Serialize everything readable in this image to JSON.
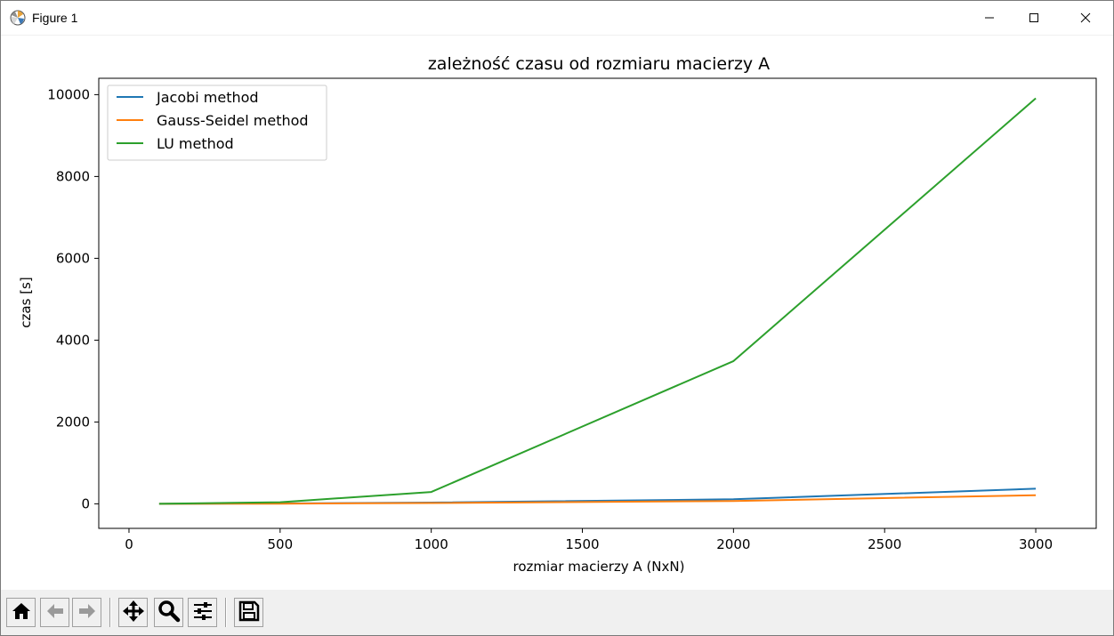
{
  "window": {
    "title": "Figure 1",
    "icons": {
      "app": "matplotlib-icon",
      "minimize": "minimize-icon",
      "maximize": "maximize-icon",
      "close": "close-icon"
    }
  },
  "toolbar": {
    "buttons": [
      {
        "name": "home-button",
        "icon": "home-icon"
      },
      {
        "name": "back-button",
        "icon": "arrow-left-icon"
      },
      {
        "name": "forward-button",
        "icon": "arrow-right-icon"
      },
      {
        "name": "pan-button",
        "icon": "move-icon"
      },
      {
        "name": "zoom-button",
        "icon": "magnifier-icon"
      },
      {
        "name": "configure-subplots-button",
        "icon": "sliders-icon"
      },
      {
        "name": "save-button",
        "icon": "floppy-disk-icon"
      }
    ]
  },
  "chart_data": {
    "type": "line",
    "title": "zależność czasu od rozmiaru macierzy A",
    "xlabel": "rozmiar macierzy A (NxN)",
    "ylabel": "czas [s]",
    "xlim": [
      -100,
      3200
    ],
    "ylim": [
      -600,
      10400
    ],
    "xticks": [
      0,
      500,
      1000,
      1500,
      2000,
      2500,
      3000
    ],
    "yticks": [
      0,
      2000,
      4000,
      6000,
      8000,
      10000
    ],
    "grid": false,
    "legend_position": "top-left",
    "x": [
      100,
      500,
      1000,
      2000,
      3000
    ],
    "series": [
      {
        "name": "Jacobi method",
        "color": "#1f77b4",
        "values": [
          1,
          8,
          30,
          110,
          370
        ]
      },
      {
        "name": "Gauss-Seidel method",
        "color": "#ff7f0e",
        "values": [
          0.5,
          5,
          20,
          70,
          210
        ]
      },
      {
        "name": "LU method",
        "color": "#2ca02c",
        "values": [
          1,
          40,
          290,
          3490,
          9910
        ]
      }
    ]
  }
}
